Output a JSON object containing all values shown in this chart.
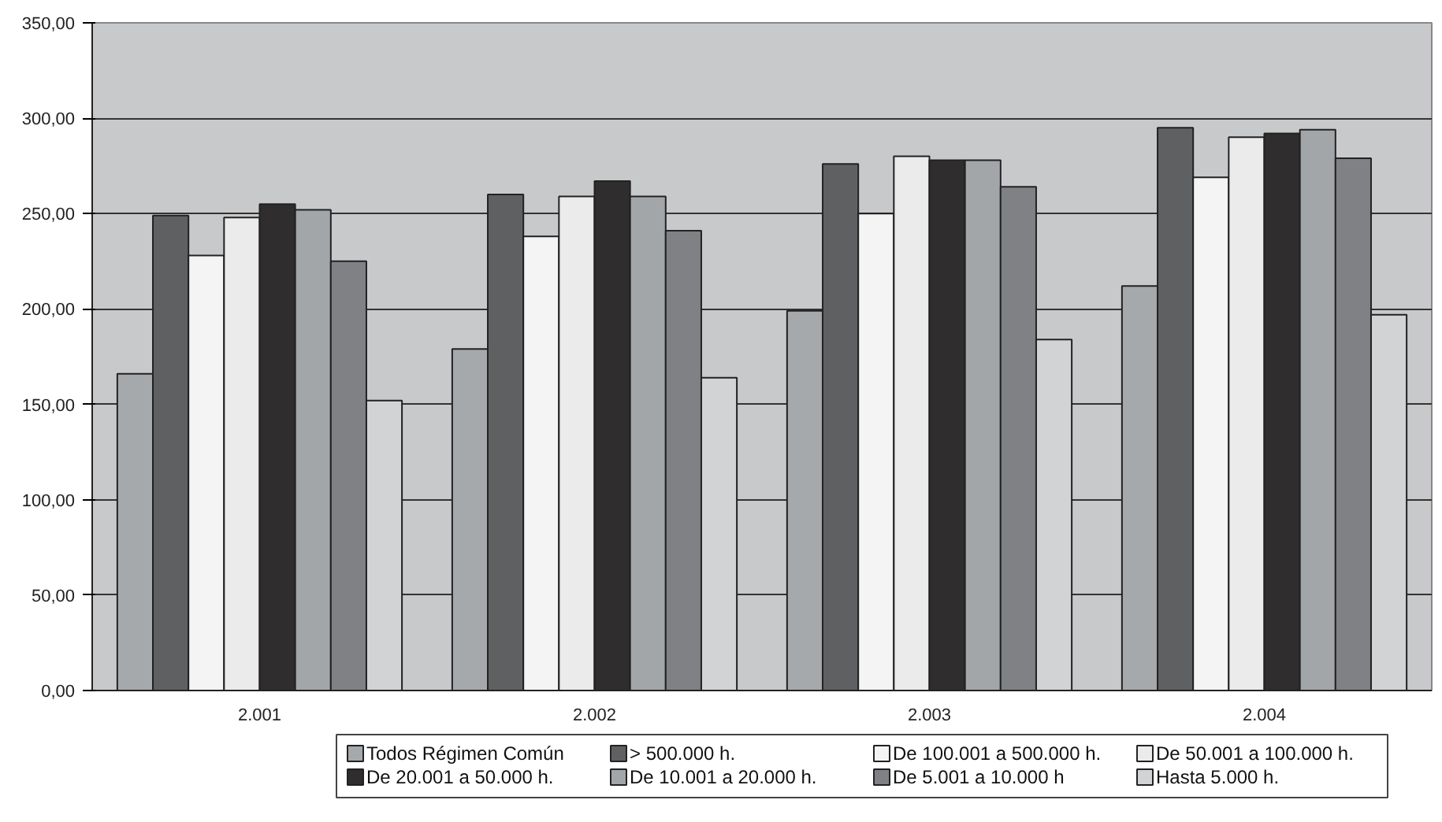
{
  "chart_data": {
    "type": "bar",
    "categories": [
      "2.001",
      "2.002",
      "2.003",
      "2.004"
    ],
    "series": [
      {
        "name": "Todos Régimen Común",
        "color": "#a6a9ac",
        "values": [
          166,
          179,
          199,
          212
        ]
      },
      {
        "name": "> 500.000 h.",
        "color": "#5f6062",
        "values": [
          249,
          260,
          276,
          295
        ]
      },
      {
        "name": "De 100.001 a 500.000 h.",
        "color": "#f3f4f3",
        "values": [
          228,
          238,
          250,
          269
        ]
      },
      {
        "name": "De 50.001 a 100.000 h.",
        "color": "#ebebeb",
        "values": [
          248,
          259,
          280,
          290
        ]
      },
      {
        "name": "De 20.001 a 50.000 h.",
        "color": "#2f2d2e",
        "values": [
          255,
          267,
          278,
          292
        ]
      },
      {
        "name": "De 10.001 a 20.000 h.",
        "color": "#a3a6a9",
        "values": [
          252,
          259,
          278,
          294
        ]
      },
      {
        "name": "De 5.001 a 10.000 h",
        "color": "#808184",
        "values": [
          225,
          241,
          264,
          279
        ]
      },
      {
        "name": "Hasta 5.000 h.",
        "color": "#d2d3d5",
        "values": [
          152,
          164,
          184,
          197
        ]
      }
    ],
    "ylim": [
      0,
      350
    ],
    "yticks": [
      {
        "value": 0,
        "label": "0,00"
      },
      {
        "value": 50,
        "label": "50,00"
      },
      {
        "value": 100,
        "label": "100,00"
      },
      {
        "value": 150,
        "label": "150,00"
      },
      {
        "value": 200,
        "label": "200,00"
      },
      {
        "value": 250,
        "label": "250,00"
      },
      {
        "value": 300,
        "label": "300,00"
      },
      {
        "value": 350,
        "label": "350,00"
      }
    ],
    "grid": "y",
    "legend": "bottom"
  }
}
